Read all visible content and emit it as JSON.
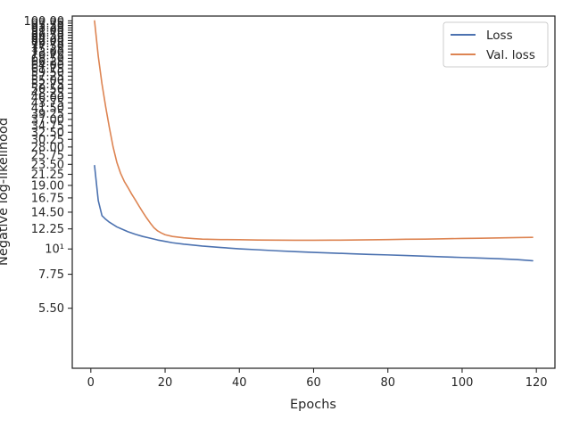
{
  "chart_data": {
    "type": "line",
    "title": "",
    "xlabel": "Epochs",
    "ylabel": "Negative log-likelihood",
    "xlim": [
      -5,
      125
    ],
    "ylim": [
      3.0,
      105.0
    ],
    "yscale": "log",
    "grid": false,
    "legend_position": "top-right",
    "x_ticks": [
      "0",
      "20",
      "40",
      "60",
      "80",
      "100",
      "120"
    ],
    "x_tick_values": [
      0,
      20,
      40,
      60,
      80,
      100,
      120
    ],
    "y_tick_values": [
      5.5,
      7.75,
      10,
      12.25,
      14.5,
      16.75,
      19.0,
      21.25,
      23.5,
      25.75,
      28.0,
      30.25,
      32.5,
      34.75,
      37.0,
      39.25,
      41.5,
      43.75,
      46.0,
      48.25,
      50.5,
      52.75,
      55.0,
      57.25,
      59.5,
      61.75,
      64.0,
      66.25,
      68.5,
      70.75,
      73.0,
      75.25,
      77.5,
      79.75,
      82.0,
      84.25,
      86.5,
      88.75,
      91.0,
      93.25,
      95.5,
      97.75,
      100.0
    ],
    "y_ticks": [
      "5.50",
      "7.75",
      "10¹",
      "12.25",
      "14.50",
      "16.75",
      "19.00",
      "21.25",
      "23.50",
      "25.75",
      "28.00",
      "30.25",
      "32.50",
      "34.75",
      "37.00",
      "39.25",
      "41.50",
      "43.75",
      "46.00",
      "48.25",
      "50.50",
      "52.75",
      "55.00",
      "57.25",
      "59.50",
      "61.75",
      "64.00",
      "66.25",
      "68.50",
      "70.75",
      "73.00",
      "75.25",
      "77.50",
      "79.75",
      "82.00",
      "84.25",
      "86.50",
      "88.75",
      "91.00",
      "93.25",
      "95.50",
      "97.75",
      "100.00"
    ],
    "series": [
      {
        "name": "Loss",
        "color": "#4c72b0",
        "x": [
          1,
          2,
          3,
          4,
          5,
          6,
          7,
          8,
          10,
          12,
          14,
          16,
          18,
          20,
          22,
          25,
          28,
          30,
          35,
          40,
          45,
          50,
          55,
          60,
          65,
          70,
          75,
          80,
          85,
          90,
          95,
          100,
          105,
          110,
          115,
          119
        ],
        "values": [
          23.2,
          16.3,
          14.0,
          13.5,
          13.1,
          12.8,
          12.5,
          12.3,
          11.9,
          11.6,
          11.35,
          11.15,
          10.95,
          10.8,
          10.65,
          10.5,
          10.38,
          10.3,
          10.15,
          10.02,
          9.92,
          9.82,
          9.74,
          9.66,
          9.6,
          9.53,
          9.47,
          9.42,
          9.36,
          9.3,
          9.24,
          9.18,
          9.12,
          9.06,
          8.98,
          8.88
        ]
      },
      {
        "name": "Val. loss",
        "color": "#dd8452",
        "x": [
          1,
          2,
          3,
          4,
          5,
          6,
          7,
          8,
          9,
          10,
          11,
          12,
          13,
          14,
          15,
          16,
          17,
          18,
          19,
          20,
          22,
          25,
          28,
          30,
          35,
          40,
          45,
          50,
          55,
          60,
          65,
          70,
          75,
          80,
          85,
          90,
          95,
          100,
          105,
          110,
          115,
          119
        ],
        "values": [
          100.0,
          70.0,
          53.0,
          42.0,
          34.0,
          28.0,
          24.0,
          21.5,
          19.8,
          18.6,
          17.4,
          16.4,
          15.4,
          14.5,
          13.7,
          13.0,
          12.4,
          12.0,
          11.75,
          11.55,
          11.35,
          11.2,
          11.1,
          11.05,
          11.0,
          10.98,
          10.95,
          10.93,
          10.92,
          10.92,
          10.93,
          10.95,
          10.97,
          11.0,
          11.03,
          11.05,
          11.08,
          11.12,
          11.15,
          11.18,
          11.22,
          11.25
        ]
      }
    ]
  }
}
